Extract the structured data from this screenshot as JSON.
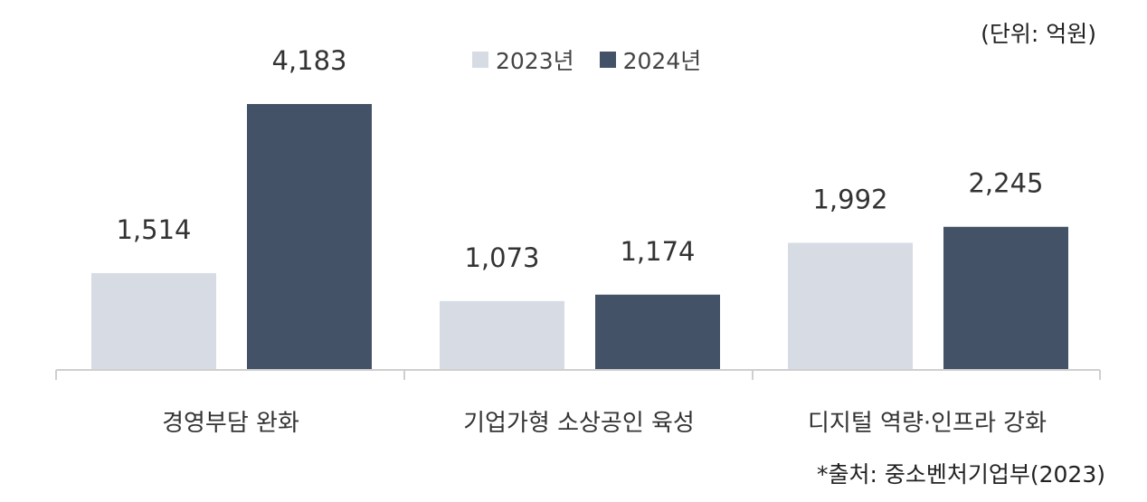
{
  "unit_note": "(단위: 억원)",
  "source_note": "*출처: 중소벤처기업부(2023)",
  "colors": {
    "y2023": "#d6dbe4",
    "y2024": "#445267",
    "axis": "#cfcfcf"
  },
  "chart_data": {
    "type": "bar",
    "categories": [
      "경영부담 완화",
      "기업가형 소상공인 육성",
      "디지털 역량·인프라 강화"
    ],
    "series": [
      {
        "name": "2023년",
        "values": [
          1514,
          1073,
          1992
        ],
        "labels": [
          "1,514",
          "1,073",
          "1,992"
        ]
      },
      {
        "name": "2024년",
        "values": [
          4183,
          1174,
          2245
        ],
        "labels": [
          "4,183",
          "1,174",
          "2,245"
        ]
      }
    ],
    "ylim": [
      0,
      4183
    ],
    "legend_position": "top-center",
    "grid": false
  }
}
